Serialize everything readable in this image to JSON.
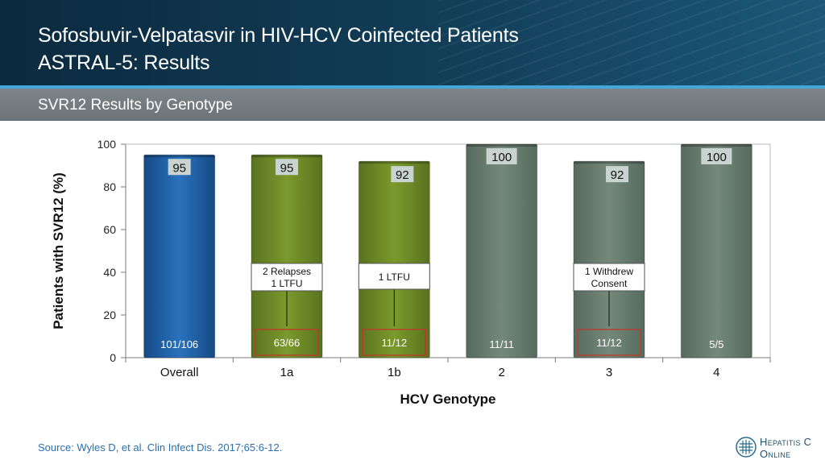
{
  "header": {
    "title_line1": "Sofosbuvir-Velpatasvir in HIV-HCV Coinfected Patients",
    "title_line2": "ASTRAL-5: Results"
  },
  "subtitle": "SVR12 Results by Genotype",
  "chart_data": {
    "type": "bar",
    "xlabel": "HCV Genotype",
    "ylabel": "Patients with SVR12 (%)",
    "ylim": [
      0,
      100
    ],
    "yticks": [
      0,
      20,
      40,
      60,
      80,
      100
    ],
    "grid": false,
    "categories": [
      "Overall",
      "1a",
      "1b",
      "2",
      "3",
      "4"
    ],
    "values": [
      95,
      95,
      92,
      100,
      92,
      100
    ],
    "value_labels": [
      "95",
      "95",
      "92",
      "100",
      "92",
      "100"
    ],
    "counts": [
      "101/106",
      "63/66",
      "11/12",
      "11/11",
      "11/12",
      "5/5"
    ],
    "colors": [
      "#1d5ea8",
      "#6f8c26",
      "#6f8c26",
      "#6a8273",
      "#6a8273",
      "#6a8273"
    ],
    "annotations": [
      {
        "category": "1a",
        "text": "2 Relapses\n1 LTFU"
      },
      {
        "category": "1b",
        "text": "1 LTFU"
      },
      {
        "category": "3",
        "text": "1 Withdrew\nConsent"
      }
    ]
  },
  "footer": {
    "source": "Source: Wyles D, et al. Clin Infect Dis. 2017;65:6-12.",
    "logo_line1": "Hepatitis C",
    "logo_line2": "Online"
  }
}
